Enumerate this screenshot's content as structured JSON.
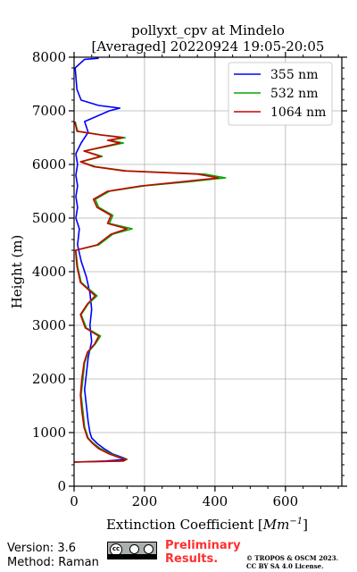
{
  "chart_data": {
    "type": "line",
    "title_line1": "pollyxt_cpv at Mindelo",
    "title_line2": "[Averaged] 20220924 19:05-20:05",
    "xlabel_prefix": "Extinction Coefficient [",
    "xlabel_unit": "Mm",
    "xlabel_exp": "−1",
    "xlabel_suffix": "]",
    "ylabel": "Height (m)",
    "xlim": [
      0,
      760
    ],
    "ylim": [
      0,
      8000
    ],
    "xticks": [
      "0",
      "200",
      "400",
      "600"
    ],
    "xtick_values": [
      0,
      200,
      400,
      600
    ],
    "yticks": [
      "0",
      "1000",
      "2000",
      "3000",
      "4000",
      "5000",
      "6000",
      "7000",
      "8000"
    ],
    "ytick_values": [
      0,
      1000,
      2000,
      3000,
      4000,
      5000,
      6000,
      7000,
      8000
    ],
    "grid": true,
    "legend_position": "top-right",
    "series": [
      {
        "name": "355 nm",
        "color": "#0000ff",
        "points": [
          [
            0,
            450
          ],
          [
            90,
            470
          ],
          [
            130,
            490
          ],
          [
            150,
            500
          ],
          [
            140,
            530
          ],
          [
            110,
            600
          ],
          [
            85,
            700
          ],
          [
            65,
            800
          ],
          [
            50,
            900
          ],
          [
            45,
            1000
          ],
          [
            40,
            1200
          ],
          [
            35,
            1500
          ],
          [
            30,
            1800
          ],
          [
            35,
            2100
          ],
          [
            40,
            2400
          ],
          [
            50,
            2700
          ],
          [
            45,
            3000
          ],
          [
            50,
            3300
          ],
          [
            45,
            3600
          ],
          [
            35,
            3900
          ],
          [
            20,
            4200
          ],
          [
            10,
            4500
          ],
          [
            15,
            4800
          ],
          [
            5,
            5000
          ],
          [
            10,
            5200
          ],
          [
            5,
            5400
          ],
          [
            10,
            5600
          ],
          [
            5,
            5800
          ],
          [
            10,
            6000
          ],
          [
            5,
            6200
          ],
          [
            20,
            6400
          ],
          [
            40,
            6600
          ],
          [
            30,
            6800
          ],
          [
            100,
            7000
          ],
          [
            130,
            7050
          ],
          [
            70,
            7100
          ],
          [
            20,
            7200
          ],
          [
            8,
            7400
          ],
          [
            3,
            7800
          ],
          [
            30,
            7960
          ],
          [
            70,
            7980
          ]
        ]
      },
      {
        "name": "532 nm",
        "color": "#00aa00",
        "points": [
          [
            0,
            450
          ],
          [
            140,
            470
          ],
          [
            150,
            500
          ],
          [
            135,
            530
          ],
          [
            105,
            600
          ],
          [
            75,
            700
          ],
          [
            55,
            800
          ],
          [
            40,
            900
          ],
          [
            30,
            1100
          ],
          [
            25,
            1400
          ],
          [
            20,
            1700
          ],
          [
            25,
            2000
          ],
          [
            30,
            2300
          ],
          [
            40,
            2500
          ],
          [
            60,
            2650
          ],
          [
            75,
            2800
          ],
          [
            35,
            2950
          ],
          [
            20,
            3200
          ],
          [
            40,
            3400
          ],
          [
            65,
            3550
          ],
          [
            20,
            3800
          ],
          [
            10,
            4100
          ],
          [
            5,
            4400
          ],
          [
            70,
            4500
          ],
          [
            110,
            4700
          ],
          [
            165,
            4800
          ],
          [
            100,
            4900
          ],
          [
            110,
            5050
          ],
          [
            70,
            5200
          ],
          [
            60,
            5350
          ],
          [
            100,
            5500
          ],
          [
            200,
            5600
          ],
          [
            330,
            5680
          ],
          [
            430,
            5750
          ],
          [
            370,
            5820
          ],
          [
            150,
            5880
          ],
          [
            60,
            5960
          ],
          [
            20,
            6050
          ],
          [
            80,
            6150
          ],
          [
            30,
            6250
          ],
          [
            140,
            6400
          ],
          [
            100,
            6450
          ],
          [
            145,
            6500
          ],
          [
            80,
            6550
          ],
          [
            10,
            6620
          ],
          [
            3,
            6800
          ]
        ]
      },
      {
        "name": "1064 nm",
        "color": "#cc0000",
        "points": [
          [
            0,
            450
          ],
          [
            140,
            470
          ],
          [
            148,
            500
          ],
          [
            130,
            530
          ],
          [
            100,
            600
          ],
          [
            70,
            700
          ],
          [
            52,
            800
          ],
          [
            38,
            900
          ],
          [
            28,
            1100
          ],
          [
            22,
            1400
          ],
          [
            18,
            1700
          ],
          [
            22,
            2000
          ],
          [
            28,
            2300
          ],
          [
            38,
            2500
          ],
          [
            58,
            2650
          ],
          [
            70,
            2800
          ],
          [
            32,
            2950
          ],
          [
            18,
            3200
          ],
          [
            38,
            3400
          ],
          [
            60,
            3550
          ],
          [
            18,
            3800
          ],
          [
            8,
            4100
          ],
          [
            4,
            4400
          ],
          [
            65,
            4500
          ],
          [
            105,
            4700
          ],
          [
            150,
            4800
          ],
          [
            95,
            4900
          ],
          [
            105,
            5050
          ],
          [
            65,
            5200
          ],
          [
            55,
            5350
          ],
          [
            95,
            5500
          ],
          [
            190,
            5600
          ],
          [
            310,
            5680
          ],
          [
            410,
            5750
          ],
          [
            350,
            5820
          ],
          [
            140,
            5880
          ],
          [
            55,
            5960
          ],
          [
            18,
            6050
          ],
          [
            75,
            6150
          ],
          [
            28,
            6250
          ],
          [
            130,
            6400
          ],
          [
            95,
            6450
          ],
          [
            138,
            6500
          ],
          [
            75,
            6550
          ],
          [
            8,
            6620
          ],
          [
            2,
            6800
          ]
        ]
      }
    ]
  },
  "footer": {
    "version": "Version: 3.6",
    "method": "Method: Raman",
    "prelim_line1": "Preliminary",
    "prelim_line2": "Results.",
    "copyright_line1": "© TROPOS & OSCM 2023.",
    "copyright_line2": "CC BY SA 4.0 License.",
    "badge_cc": "cc"
  }
}
